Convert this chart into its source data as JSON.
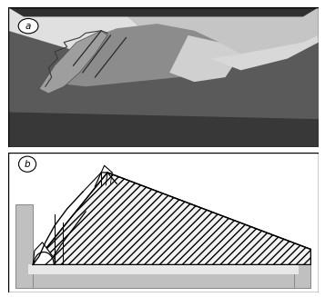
{
  "fig_width": 3.57,
  "fig_height": 3.27,
  "dpi": 100,
  "bg_color": "#ffffff",
  "photo_bg_dark": "#606060",
  "photo_bg_light": "#c8c8c8",
  "photo_top_white": "#e8e8e8",
  "wedge_main": "#888888",
  "wedge_shadow": "#505050",
  "wedge_light": "#b5b5b5",
  "container_gray": "#c0c0c0",
  "container_border": "#888888",
  "hatch_face": "#f5f5f5",
  "label_circle_r": 0.22
}
